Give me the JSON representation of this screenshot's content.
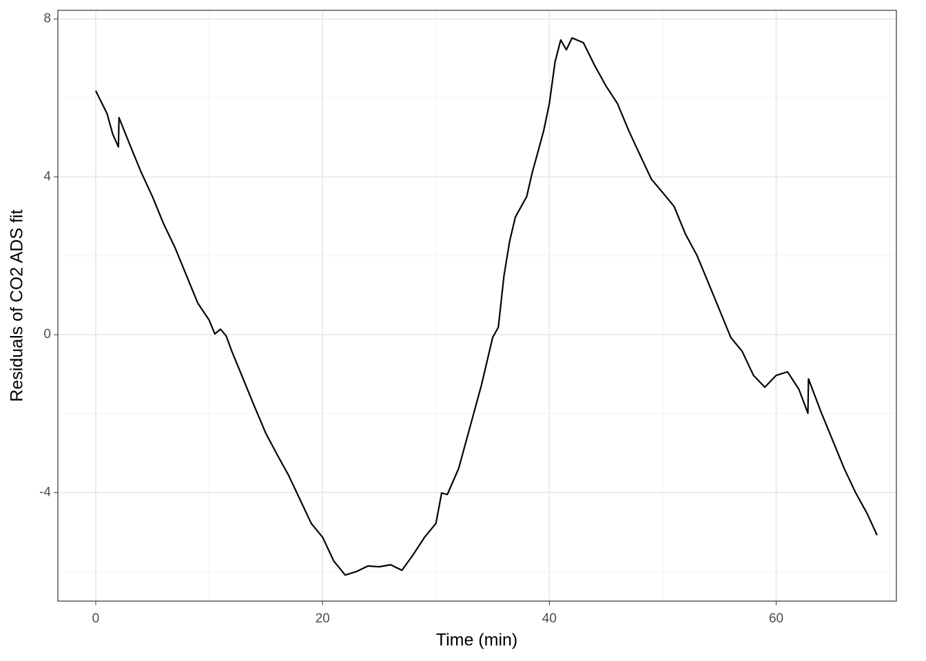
{
  "chart_data": {
    "type": "line",
    "x_label": "Time (min)",
    "y_label": "Residuals of CO2 ADS fit",
    "x": [
      0,
      1,
      1.5,
      2,
      2.05,
      3,
      4,
      5,
      6,
      7,
      8,
      9,
      10,
      10.5,
      11,
      11.5,
      12,
      13,
      14,
      15,
      16,
      17,
      18,
      19,
      20,
      21,
      22,
      23,
      24,
      25,
      26,
      27,
      28,
      29,
      30,
      30.5,
      31,
      32,
      33,
      34,
      35,
      35.5,
      36,
      36.5,
      37,
      38,
      38.5,
      39,
      39.5,
      40,
      40.5,
      41,
      41.5,
      42,
      43,
      44,
      45,
      46,
      47,
      48,
      49,
      50,
      51,
      52,
      53,
      54,
      55,
      56,
      57,
      58,
      59,
      60,
      61,
      62,
      62.8,
      62.85,
      64,
      65,
      66,
      67,
      68,
      68.9
    ],
    "series": [
      {
        "color": "#000000",
        "values": [
          6.18,
          5.6,
          5.08,
          4.76,
          5.5,
          4.82,
          4.12,
          3.5,
          2.8,
          2.2,
          1.5,
          0.8,
          0.37,
          0.02,
          0.14,
          -0.03,
          -0.42,
          -1.12,
          -1.82,
          -2.5,
          -3.04,
          -3.56,
          -4.17,
          -4.78,
          -5.13,
          -5.74,
          -6.09,
          -6.0,
          -5.86,
          -5.88,
          -5.83,
          -5.97,
          -5.57,
          -5.13,
          -4.78,
          -4.01,
          -4.05,
          -3.39,
          -2.34,
          -1.29,
          -0.07,
          0.19,
          1.5,
          2.37,
          2.98,
          3.5,
          4.12,
          4.64,
          5.17,
          5.86,
          6.91,
          7.47,
          7.22,
          7.52,
          7.4,
          6.82,
          6.3,
          5.86,
          5.17,
          4.55,
          3.94,
          3.6,
          3.25,
          2.55,
          2.02,
          1.33,
          0.63,
          -0.07,
          -0.42,
          -1.03,
          -1.33,
          -1.03,
          -0.94,
          -1.38,
          -1.99,
          -1.12,
          -1.99,
          -2.69,
          -3.39,
          -4.0,
          -4.52,
          -5.08
        ]
      }
    ],
    "xlim": [
      -3.34,
      70.6
    ],
    "ylim": [
      -6.75,
      8.22
    ],
    "xticks": [
      0,
      20,
      40,
      60
    ],
    "yticks": [
      -4,
      0,
      4,
      8
    ],
    "xminor": [
      10,
      30,
      50,
      70
    ],
    "yminor": [
      -6,
      -2,
      2,
      6
    ],
    "grid": true
  }
}
